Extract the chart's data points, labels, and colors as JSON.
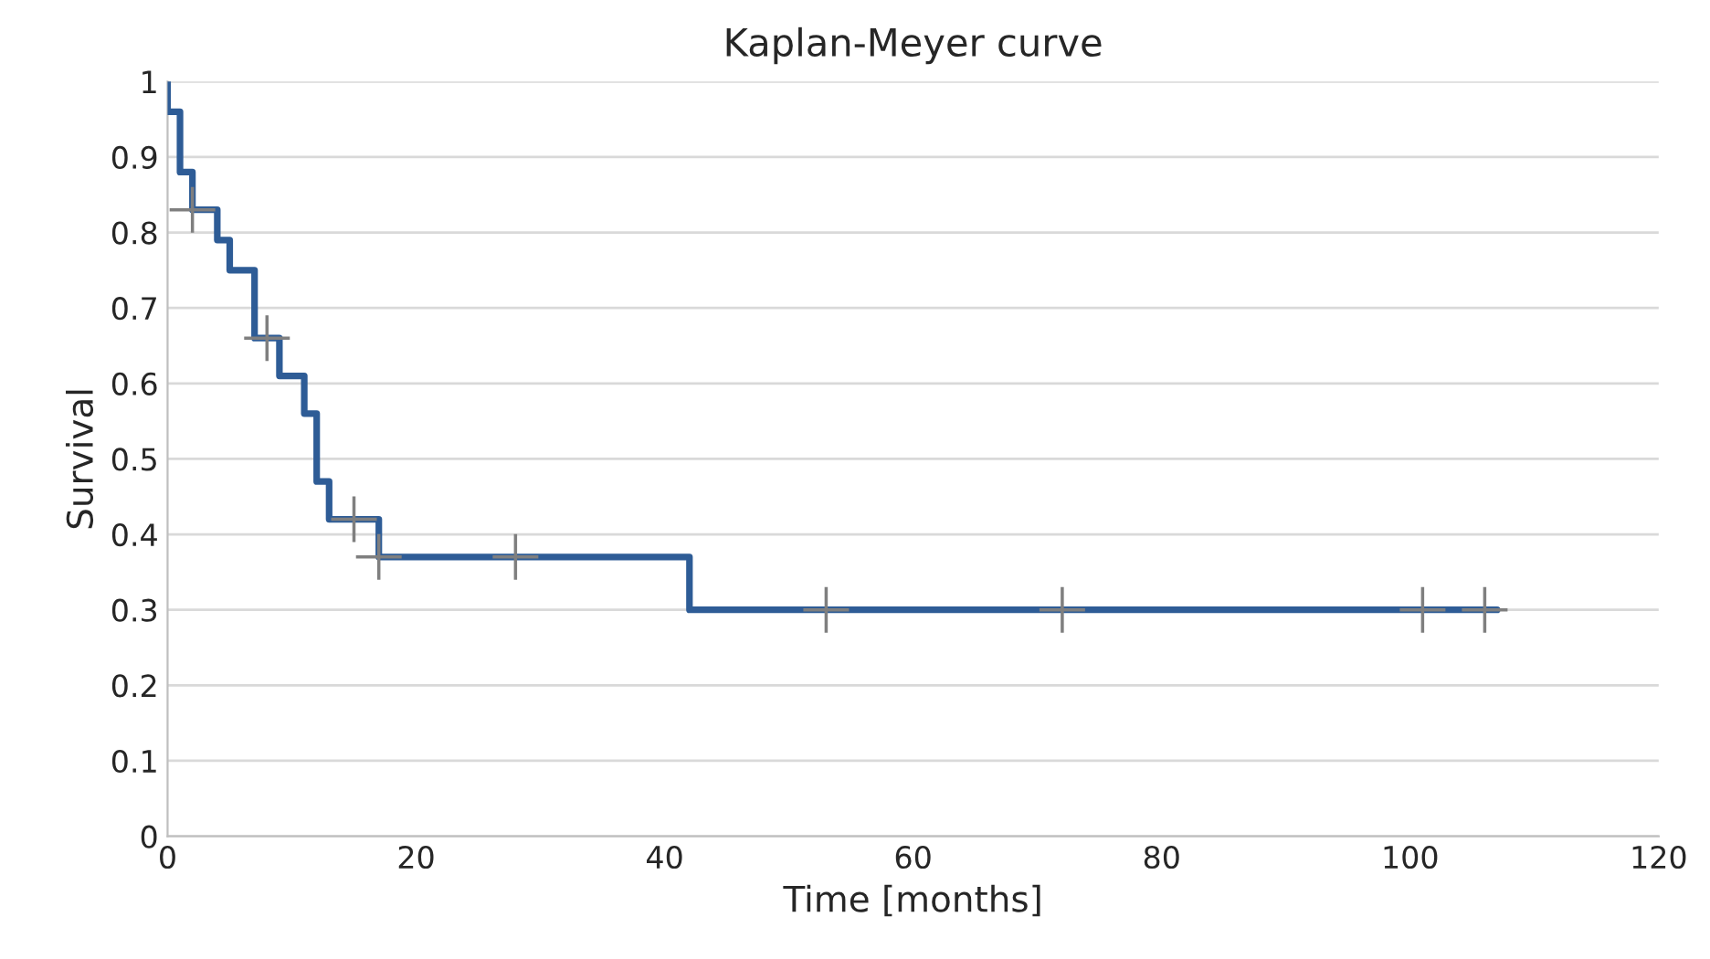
{
  "chart_data": {
    "type": "step",
    "title": "Kaplan-Meyer curve",
    "xlabel": "Time [months]",
    "ylabel": "Survival",
    "xlim": [
      0,
      120
    ],
    "xticks": [
      0,
      20,
      40,
      60,
      80,
      100,
      120
    ],
    "ylim": [
      0,
      1
    ],
    "yticks": [
      0,
      0.1,
      0.2,
      0.3,
      0.4,
      0.5,
      0.6,
      0.7,
      0.8,
      0.9,
      1
    ],
    "grid": "y",
    "legend": false,
    "series": [
      {
        "color": "#2e5c96",
        "x": [
          0,
          0,
          1,
          2,
          4,
          5,
          7,
          9,
          11,
          12,
          13,
          17,
          42,
          107
        ],
        "values": [
          1,
          0.96,
          0.88,
          0.83,
          0.79,
          0.75,
          0.66,
          0.61,
          0.56,
          0.47,
          0.42,
          0.37,
          0.3,
          0.3
        ]
      },
      {
        "type": "scatter",
        "marker": "cross",
        "color": "#7f7f7f",
        "x": [
          2,
          8,
          15,
          17,
          28,
          53,
          72,
          101,
          106
        ],
        "values": [
          0.83,
          0.66,
          0.42,
          0.37,
          0.37,
          0.3,
          0.3,
          0.3,
          0.3
        ]
      }
    ]
  }
}
